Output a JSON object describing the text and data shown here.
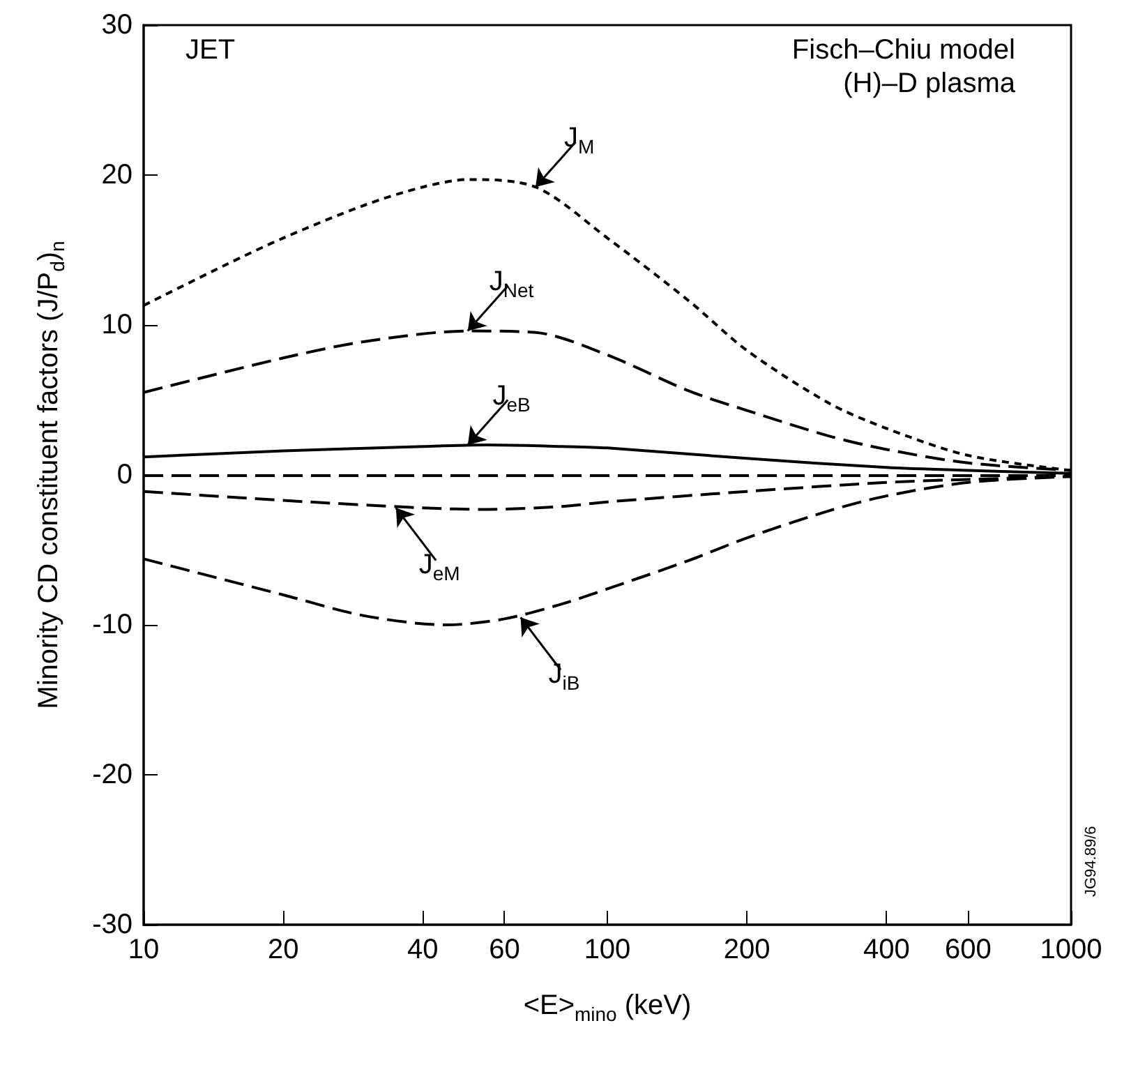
{
  "chart_data": {
    "type": "line",
    "xlabel": "<E>$_{mino}$ (keV)",
    "ylabel": "Minority CD constituent factors (J/P$_{d}$)$_{n}$",
    "log": "x",
    "xlim": [
      10,
      1000
    ],
    "xticks": [
      10,
      20,
      40,
      60,
      100,
      200,
      400,
      600,
      1000
    ],
    "ylim": [
      -30,
      30
    ],
    "yticks": [
      -30,
      -20,
      -10,
      0,
      10,
      20,
      30
    ],
    "grid": false,
    "marker": "none",
    "series": [
      {
        "color": "#000000",
        "line_style": "dotted",
        "x": [
          10,
          15,
          20,
          30,
          40,
          50,
          70,
          100,
          150,
          200,
          300,
          400,
          600,
          1000
        ],
        "values": [
          11.3,
          14,
          15.8,
          18,
          19.2,
          19.7,
          19.2,
          15.8,
          11.6,
          8.3,
          4.8,
          3.1,
          1.3,
          0.3
        ]
      },
      {
        "color": "#000000",
        "line_style": "dashed",
        "x": [
          10,
          20,
          30,
          50,
          70,
          100,
          150,
          200,
          300,
          400,
          600,
          1000
        ],
        "values": [
          5.5,
          7.8,
          8.9,
          9.6,
          9.5,
          8,
          5.6,
          4.3,
          2.6,
          1.7,
          0.8,
          0.3
        ]
      },
      {
        "color": "#000000",
        "line_style": "solid",
        "x": [
          10,
          20,
          40,
          55,
          80,
          100,
          200,
          400,
          600,
          1000
        ],
        "values": [
          1.2,
          1.6,
          1.9,
          2,
          1.9,
          1.8,
          1.1,
          0.5,
          0.3,
          0.1
        ]
      },
      {
        "color": "#000000",
        "line_style": "dashed",
        "x": [
          10,
          20,
          40,
          55,
          80,
          100,
          200,
          400,
          600,
          1000
        ],
        "values": [
          -1.1,
          -1.7,
          -2.2,
          -2.3,
          -2.1,
          -1.8,
          -1.1,
          -0.5,
          -0.3,
          -0.1
        ]
      },
      {
        "color": "#000000",
        "line_style": "dashed",
        "x": [
          10,
          20,
          30,
          45,
          60,
          80,
          100,
          150,
          200,
          300,
          400,
          600,
          1000
        ],
        "values": [
          -5.6,
          -8,
          -9.4,
          -10,
          -9.6,
          -8.6,
          -7.6,
          -5.7,
          -4.2,
          -2.4,
          -1.4,
          -0.5,
          -0.1
        ]
      }
    ],
    "ref_lines": [
      {
        "axis": "y",
        "value": 0,
        "color": "#000000",
        "line_style": "dashed"
      }
    ],
    "annotations": [
      "JET",
      "Fisch–Chiu model",
      "(H)–D plasma",
      "JG94.89/6",
      {
        "text": "J$_{M}$",
        "x": 70,
        "y": 19.2
      },
      {
        "text": "J$_{Net}$",
        "x": 50,
        "y": 9.6
      },
      {
        "text": "J$_{eB}$",
        "x": 50,
        "y": 2
      },
      {
        "text": "J$_{eM}$",
        "x": 35,
        "y": -2.2
      },
      {
        "text": "J$_{iB}$",
        "x": 65,
        "y": -9.5
      }
    ]
  }
}
